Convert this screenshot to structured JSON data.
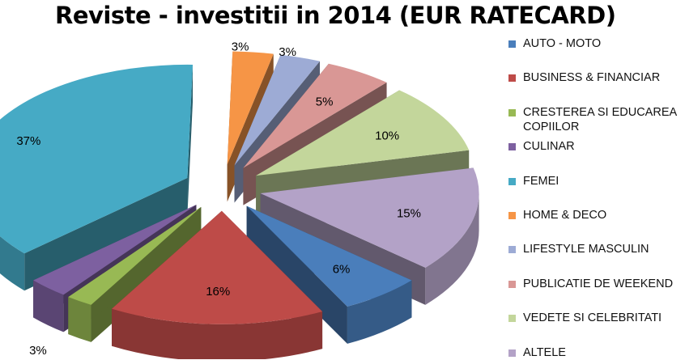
{
  "chart_data": {
    "type": "pie",
    "title": "Reviste - investitii in 2014 (EUR RATECARD)",
    "unit": "%",
    "slices": [
      {
        "label": "AUTO - MOTO",
        "value": 6,
        "display": "6%",
        "color": "#4a7ebb"
      },
      {
        "label": "BUSINESS & FINANCIAR",
        "value": 16,
        "display": "16%",
        "color": "#be4b48"
      },
      {
        "label": "CRESTEREA SI EDUCAREA COPIILOR",
        "value": 2,
        "display": "2%",
        "color": "#98b954"
      },
      {
        "label": "CULINAR",
        "value": 3,
        "display": "3%",
        "color": "#7d60a0"
      },
      {
        "label": "FEMEI",
        "value": 37,
        "display": "37%",
        "color": "#46aac5"
      },
      {
        "label": "HOME & DECO",
        "value": 3,
        "display": "3%",
        "color": "#f69546"
      },
      {
        "label": "LIFESTYLE MASCULIN",
        "value": 3,
        "display": "3%",
        "color": "#9dabd5"
      },
      {
        "label": "PUBLICATIE DE WEEKEND",
        "value": 5,
        "display": "5%",
        "color": "#d99795"
      },
      {
        "label": "VEDETE SI CELEBRITATI",
        "value": 10,
        "display": "10%",
        "color": "#c3d69b"
      },
      {
        "label": "ALTELE",
        "value": 15,
        "display": "15%",
        "color": "#b3a2c7"
      }
    ],
    "legend_position": "right",
    "style": "exploded-3d-pie"
  }
}
